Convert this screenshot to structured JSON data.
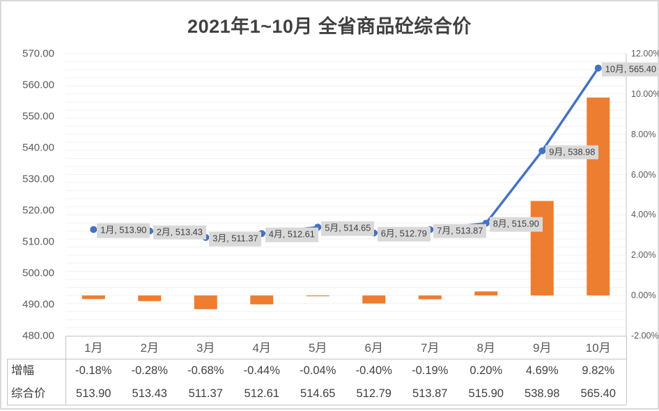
{
  "title": "2021年1~10月 全省商品砼综合价",
  "chart_data": {
    "type": "combo",
    "title": "2021年1~10月 全省商品砼综合价",
    "categories": [
      "1月",
      "2月",
      "3月",
      "4月",
      "5月",
      "6月",
      "7月",
      "8月",
      "9月",
      "10月"
    ],
    "series": [
      {
        "name": "增幅",
        "type": "bar",
        "axis": "right",
        "unit": "%",
        "color": "#ED7D31",
        "values": [
          -0.18,
          -0.28,
          -0.68,
          -0.44,
          -0.04,
          -0.4,
          -0.19,
          0.2,
          4.69,
          9.82
        ]
      },
      {
        "name": "综合价",
        "type": "line",
        "axis": "left",
        "color": "#4472C4",
        "values": [
          513.9,
          513.43,
          511.37,
          512.61,
          514.65,
          512.79,
          513.87,
          515.9,
          538.98,
          565.4
        ]
      }
    ],
    "point_labels": [
      "1月, 513.90",
      "2月, 513.43",
      "3月, 511.37",
      "4月, 512.61",
      "5月, 514.65",
      "6月, 512.79",
      "7月, 513.87",
      "8月, 515.90",
      "9月, 538.98",
      "10月, 565.40"
    ],
    "left_axis": {
      "min": 480,
      "max": 570,
      "step": 10,
      "ticks": [
        "570.00",
        "560.00",
        "550.00",
        "540.00",
        "530.00",
        "520.00",
        "510.00",
        "500.00",
        "490.00",
        "480.00"
      ]
    },
    "right_axis": {
      "min": -2,
      "max": 12,
      "step": 2,
      "ticks": [
        "12.00%",
        "10.00%",
        "8.00%",
        "6.00%",
        "4.00%",
        "2.00%",
        "0.00%",
        "-2.00%"
      ]
    },
    "grid": true,
    "legend_position": "none"
  },
  "table": {
    "row_headers": [
      "增幅",
      "综合价"
    ],
    "columns": [
      "1月",
      "2月",
      "3月",
      "4月",
      "5月",
      "6月",
      "7月",
      "8月",
      "9月",
      "10月"
    ],
    "rows": [
      [
        "-0.18%",
        "-0.28%",
        "-0.68%",
        "-0.44%",
        "-0.04%",
        "-0.40%",
        "-0.19%",
        "0.20%",
        "4.69%",
        "9.82%"
      ],
      [
        "513.90",
        "513.43",
        "511.37",
        "512.61",
        "514.65",
        "512.79",
        "513.87",
        "515.90",
        "538.98",
        "565.40"
      ]
    ]
  },
  "colors": {
    "bar": "#ED7D31",
    "line": "#4472C4",
    "label_bg": "#D9D9D9",
    "grid": "#F1F1F1",
    "axis_line": "#D9D9D9",
    "axis_text": "#595959",
    "title_text": "#404040",
    "table_border": "#C3C3C3"
  }
}
